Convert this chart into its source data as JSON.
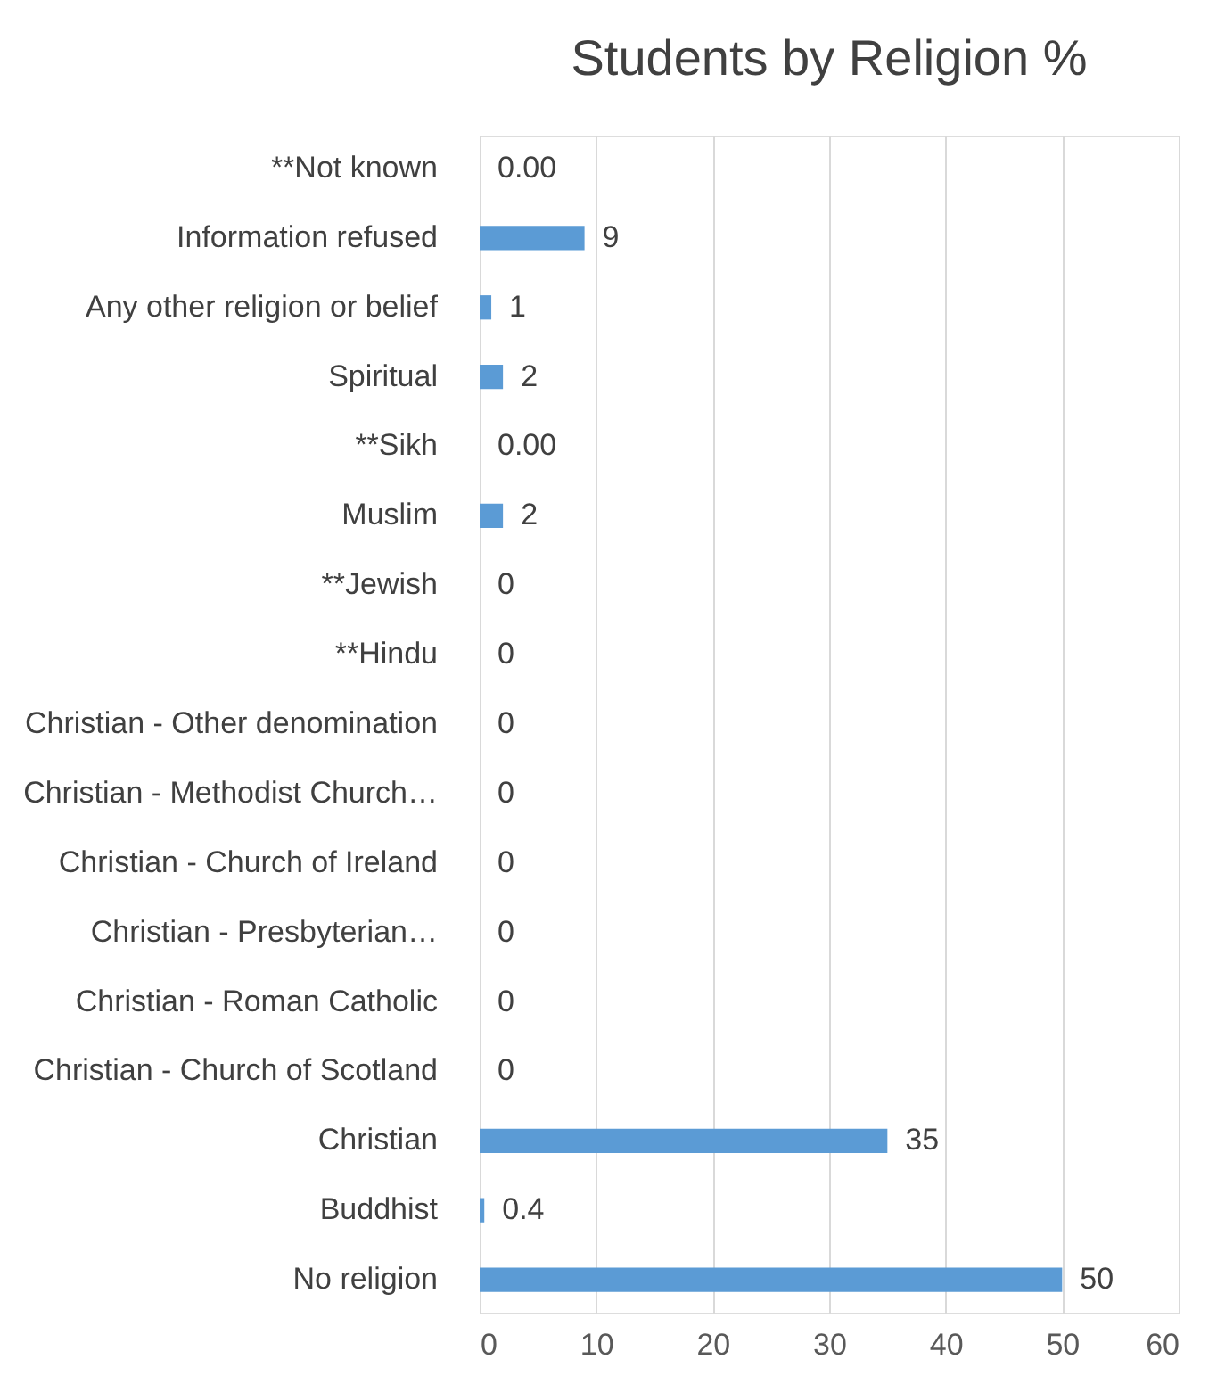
{
  "chart_data": {
    "type": "bar",
    "orientation": "horizontal",
    "title": "Students by Religion %",
    "categories": [
      "**Not known",
      "Information refused",
      "Any other religion or belief",
      "Spiritual",
      "**Sikh",
      "Muslim",
      "**Jewish",
      "**Hindu",
      "Christian - Other denomination",
      "Christian - Methodist Church…",
      "Christian - Church of Ireland",
      "Christian - Presbyterian…",
      "Christian - Roman Catholic",
      "Christian - Church of Scotland",
      "Christian",
      "Buddhist",
      "No religion"
    ],
    "values": [
      0,
      9,
      1,
      2,
      0,
      2,
      0,
      0,
      0,
      0,
      0,
      0,
      0,
      0,
      35,
      0.4,
      50
    ],
    "value_labels": [
      "0.00",
      "9",
      "1",
      "2",
      "0.00",
      "2",
      "0",
      "0",
      "0",
      "0",
      "0",
      "0",
      "0",
      "0",
      "35",
      "0.4",
      "50"
    ],
    "color": "#5b9bd5",
    "xlim": [
      0,
      60
    ],
    "xticks": [
      0,
      10,
      20,
      30,
      40,
      50,
      60
    ],
    "grid": "x"
  }
}
